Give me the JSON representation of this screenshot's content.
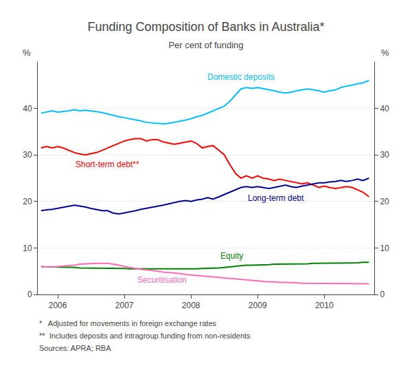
{
  "chart_data": {
    "type": "line",
    "title": "Funding Composition of Banks in Australia*",
    "subtitle": "Per cent of funding",
    "ylabel": "%",
    "y2label": "%",
    "footnotes": [
      "*   Adjusted for movements in foreign exchange rates",
      "**  Includes deposits and intragroup funding from non-residents",
      "Sources: APRA; RBA"
    ],
    "x": [
      2005.75,
      2005.83,
      2005.92,
      2006.0,
      2006.08,
      2006.17,
      2006.25,
      2006.33,
      2006.42,
      2006.5,
      2006.58,
      2006.67,
      2006.75,
      2006.83,
      2006.92,
      2007.0,
      2007.08,
      2007.17,
      2007.25,
      2007.33,
      2007.42,
      2007.5,
      2007.58,
      2007.67,
      2007.75,
      2007.83,
      2007.92,
      2008.0,
      2008.08,
      2008.17,
      2008.25,
      2008.33,
      2008.42,
      2008.5,
      2008.58,
      2008.67,
      2008.75,
      2008.83,
      2008.92,
      2009.0,
      2009.08,
      2009.17,
      2009.25,
      2009.33,
      2009.42,
      2009.5,
      2009.58,
      2009.67,
      2009.75,
      2009.83,
      2009.92,
      2010.0,
      2010.08,
      2010.17,
      2010.25,
      2010.33,
      2010.42,
      2010.5,
      2010.58,
      2010.67
    ],
    "xlim": [
      2005.7,
      2010.75
    ],
    "xticks": [
      2006,
      2007,
      2008,
      2009,
      2010
    ],
    "ylim": [
      0,
      50
    ],
    "yticks": [
      0,
      10,
      20,
      30,
      40
    ],
    "y2lim": [
      0,
      50
    ],
    "y2ticks": [
      0,
      10,
      20,
      30,
      40
    ],
    "grid": true,
    "series": [
      {
        "name": "Domestic deposits",
        "color": "#00BFFF",
        "values": [
          39.0,
          39.2,
          39.5,
          39.2,
          39.3,
          39.5,
          39.7,
          39.5,
          39.6,
          39.4,
          39.3,
          39.1,
          38.8,
          38.5,
          38.2,
          38.0,
          37.8,
          37.5,
          37.3,
          37.0,
          36.9,
          36.8,
          36.7,
          36.8,
          37.0,
          37.2,
          37.5,
          37.8,
          38.2,
          38.5,
          39.0,
          39.5,
          40.0,
          40.5,
          41.5,
          43.0,
          44.2,
          44.5,
          44.3,
          44.5,
          44.3,
          44.0,
          43.8,
          43.5,
          43.3,
          43.5,
          43.8,
          44.0,
          44.2,
          44.0,
          43.8,
          43.5,
          43.8,
          44.0,
          44.5,
          44.8,
          45.0,
          45.3,
          45.5,
          46.0
        ]
      },
      {
        "name": "Short-term debt**",
        "color": "#FF0000",
        "values": [
          31.5,
          31.8,
          31.5,
          31.8,
          31.5,
          31.0,
          30.5,
          30.2,
          30.0,
          30.3,
          30.5,
          31.0,
          31.5,
          32.0,
          32.5,
          33.0,
          33.3,
          33.5,
          33.5,
          33.0,
          33.3,
          33.3,
          32.8,
          32.5,
          32.3,
          32.5,
          32.8,
          33.0,
          32.5,
          31.5,
          31.8,
          32.0,
          31.0,
          30.0,
          28.0,
          26.0,
          25.0,
          25.5,
          25.0,
          25.5,
          25.0,
          24.8,
          24.5,
          24.8,
          24.5,
          24.3,
          24.0,
          23.8,
          24.0,
          23.5,
          23.0,
          23.3,
          23.0,
          22.8,
          23.0,
          23.2,
          23.0,
          22.5,
          22.0,
          21.0
        ]
      },
      {
        "name": "Long-term debt",
        "color": "#000099",
        "values": [
          18.0,
          18.2,
          18.3,
          18.5,
          18.8,
          19.0,
          19.2,
          19.0,
          18.8,
          18.5,
          18.3,
          18.0,
          18.0,
          17.5,
          17.3,
          17.5,
          17.8,
          18.0,
          18.3,
          18.5,
          18.8,
          19.0,
          19.2,
          19.5,
          19.8,
          20.0,
          20.2,
          20.0,
          20.3,
          20.5,
          20.8,
          20.5,
          21.0,
          21.5,
          22.0,
          22.5,
          23.0,
          23.2,
          23.0,
          23.2,
          23.0,
          22.8,
          23.0,
          23.2,
          23.5,
          23.2,
          23.0,
          23.3,
          23.5,
          23.8,
          24.0,
          24.0,
          24.2,
          24.3,
          24.5,
          24.3,
          24.5,
          24.8,
          24.5,
          25.0
        ]
      },
      {
        "name": "Equity",
        "color": "#008000",
        "values": [
          6.0,
          5.9,
          5.9,
          5.9,
          5.8,
          5.8,
          5.8,
          5.7,
          5.7,
          5.7,
          5.7,
          5.7,
          5.7,
          5.6,
          5.6,
          5.6,
          5.5,
          5.5,
          5.5,
          5.5,
          5.5,
          5.5,
          5.4,
          5.4,
          5.4,
          5.4,
          5.4,
          5.5,
          5.5,
          5.6,
          5.6,
          5.6,
          5.7,
          5.8,
          5.9,
          6.0,
          6.2,
          6.3,
          6.3,
          6.3,
          6.4,
          6.4,
          6.5,
          6.5,
          6.5,
          6.6,
          6.6,
          6.6,
          6.6,
          6.7,
          6.7,
          6.7,
          6.8,
          6.8,
          6.8,
          6.8,
          6.8,
          6.8,
          6.9,
          6.9
        ]
      },
      {
        "name": "Securitisation",
        "color": "#FF69B4",
        "values": [
          5.9,
          5.9,
          5.9,
          6.0,
          6.1,
          6.2,
          6.3,
          6.5,
          6.6,
          6.7,
          6.7,
          6.7,
          6.7,
          6.5,
          6.3,
          6.0,
          5.8,
          5.6,
          5.4,
          5.3,
          5.2,
          5.0,
          4.8,
          4.7,
          4.6,
          4.5,
          4.3,
          4.2,
          4.0,
          3.9,
          3.8,
          3.7,
          3.6,
          3.5,
          3.4,
          3.3,
          3.2,
          3.1,
          3.0,
          2.9,
          2.8,
          2.7,
          2.7,
          2.6,
          2.6,
          2.5,
          2.5,
          2.4,
          2.4,
          2.4,
          2.3,
          2.3,
          2.3,
          2.3,
          2.3,
          2.3,
          2.3,
          2.3,
          2.3,
          2.3
        ]
      }
    ]
  }
}
